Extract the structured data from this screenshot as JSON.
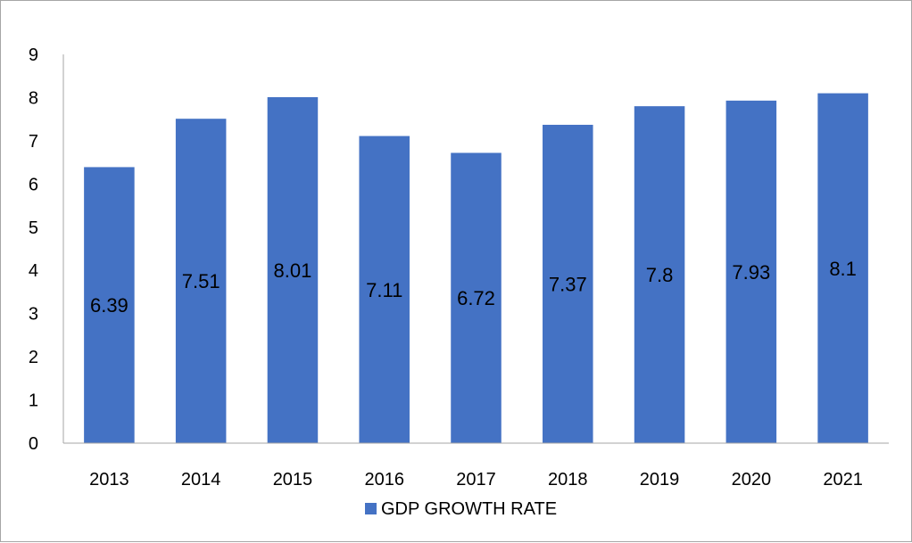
{
  "chart_data": {
    "type": "bar",
    "categories": [
      "2013",
      "2014",
      "2015",
      "2016",
      "2017",
      "2018",
      "2019",
      "2020",
      "2021"
    ],
    "series": [
      {
        "name": "GDP GROWTH RATE",
        "values": [
          6.39,
          7.51,
          8.01,
          7.11,
          6.72,
          7.37,
          7.8,
          7.93,
          8.1
        ],
        "data_labels": [
          "6.39",
          "7.51",
          "8.01",
          "7.11",
          "6.72",
          "7.37",
          "7.8",
          "7.93",
          "8.1"
        ],
        "color": "#4472c4"
      }
    ],
    "ylim": [
      0,
      9
    ],
    "y_ticks": [
      "0",
      "1",
      "2",
      "3",
      "4",
      "5",
      "6",
      "7",
      "8",
      "9"
    ],
    "grid": false,
    "legend_position": "bottom",
    "axis_color": "#a6a6a6"
  }
}
